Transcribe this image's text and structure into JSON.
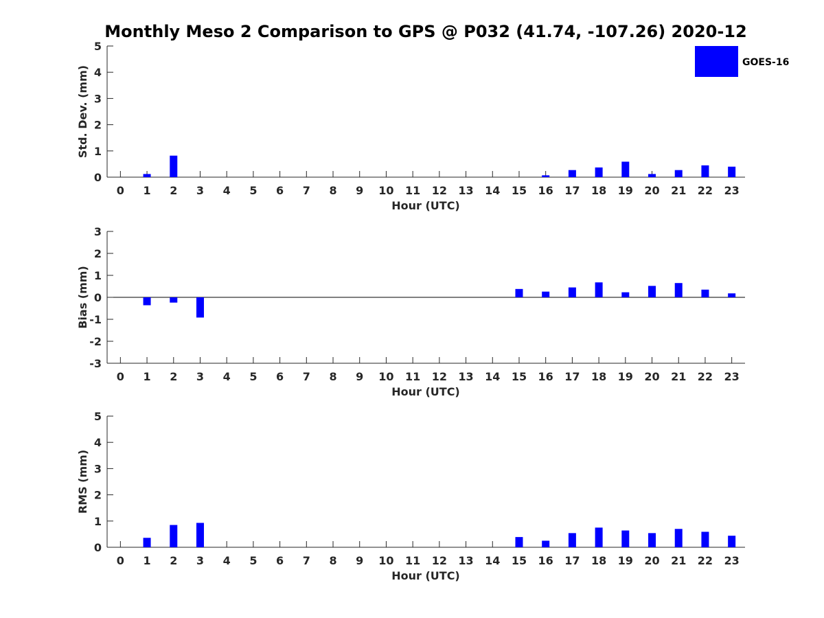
{
  "title": "Monthly Meso 2 Comparison to GPS @ P032 (41.74, -107.26) 2020-12",
  "legend": {
    "label": "GOES-16",
    "placement": "top-right"
  },
  "colors": {
    "bar": "#0000ff",
    "axis": "#262626",
    "tick_text": "#262626"
  },
  "chart_data": [
    {
      "type": "bar",
      "xlabel": "Hour (UTC)",
      "ylabel": "Std. Dev. (mm)",
      "ylim": [
        0,
        5
      ],
      "yticks": [
        0,
        1,
        2,
        3,
        4,
        5
      ],
      "xlim": [
        -0.5,
        23.5
      ],
      "categories": [
        "0",
        "1",
        "2",
        "3",
        "4",
        "5",
        "6",
        "7",
        "8",
        "9",
        "10",
        "11",
        "12",
        "13",
        "14",
        "15",
        "16",
        "17",
        "18",
        "19",
        "20",
        "21",
        "22",
        "23"
      ],
      "series": [
        {
          "name": "GOES-16",
          "values": [
            null,
            0.12,
            0.82,
            null,
            null,
            null,
            null,
            null,
            null,
            null,
            null,
            null,
            null,
            null,
            null,
            null,
            0.07,
            0.27,
            0.37,
            0.59,
            0.12,
            0.27,
            0.45,
            0.4
          ]
        }
      ]
    },
    {
      "type": "bar",
      "xlabel": "Hour (UTC)",
      "ylabel": "Bias (mm)",
      "ylim": [
        -3,
        3
      ],
      "yticks": [
        -3,
        -2,
        -1,
        0,
        1,
        2,
        3
      ],
      "xlim": [
        -0.5,
        23.5
      ],
      "zero_line": true,
      "categories": [
        "0",
        "1",
        "2",
        "3",
        "4",
        "5",
        "6",
        "7",
        "8",
        "9",
        "10",
        "11",
        "12",
        "13",
        "14",
        "15",
        "16",
        "17",
        "18",
        "19",
        "20",
        "21",
        "22",
        "23"
      ],
      "series": [
        {
          "name": "GOES-16",
          "values": [
            null,
            -0.36,
            -0.24,
            -0.92,
            null,
            null,
            null,
            null,
            null,
            null,
            null,
            null,
            null,
            null,
            null,
            0.38,
            0.26,
            0.45,
            0.68,
            0.23,
            0.52,
            0.65,
            0.35,
            0.18
          ]
        }
      ]
    },
    {
      "type": "bar",
      "xlabel": "Hour (UTC)",
      "ylabel": "RMS (mm)",
      "ylim": [
        0,
        5
      ],
      "yticks": [
        0,
        1,
        2,
        3,
        4,
        5
      ],
      "xlim": [
        -0.5,
        23.5
      ],
      "categories": [
        "0",
        "1",
        "2",
        "3",
        "4",
        "5",
        "6",
        "7",
        "8",
        "9",
        "10",
        "11",
        "12",
        "13",
        "14",
        "15",
        "16",
        "17",
        "18",
        "19",
        "20",
        "21",
        "22",
        "23"
      ],
      "series": [
        {
          "name": "GOES-16",
          "values": [
            null,
            0.36,
            0.85,
            0.93,
            null,
            null,
            null,
            null,
            null,
            null,
            null,
            null,
            null,
            null,
            null,
            0.39,
            0.25,
            0.54,
            0.75,
            0.64,
            0.54,
            0.7,
            0.59,
            0.44
          ]
        }
      ]
    }
  ]
}
